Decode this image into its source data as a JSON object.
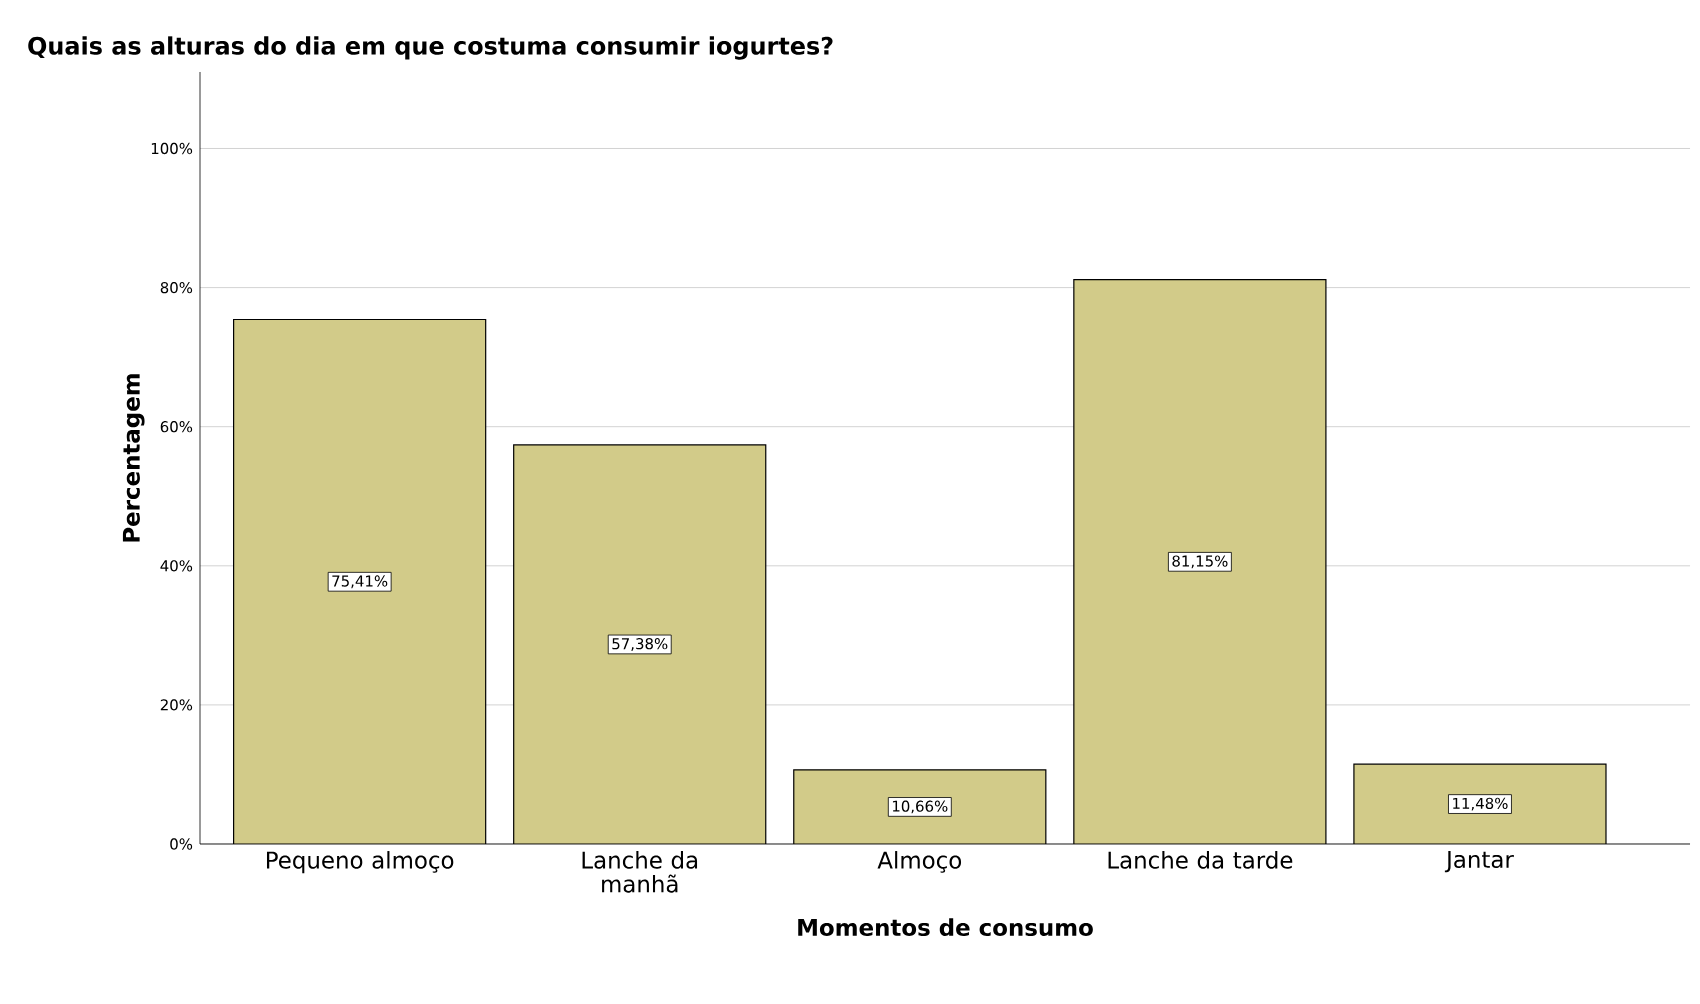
{
  "chart_data": {
    "type": "bar",
    "title": "Quais as alturas do dia em que costuma consumir iogurtes?",
    "xlabel": "Momentos de consumo",
    "ylabel": "Percentagem",
    "categories": [
      "Pequeno almoço",
      "Lanche da manhã",
      "Almoço",
      "Lanche da tarde",
      "Jantar"
    ],
    "values": [
      75.41,
      57.38,
      10.66,
      81.15,
      11.48
    ],
    "value_labels": [
      "75,41%",
      "57,38%",
      "10,66%",
      "81,15%",
      "11,48%"
    ],
    "color": "#d2cb89",
    "ylim": [
      0,
      111
    ],
    "yticks": [
      {
        "value": 0,
        "label": "0%"
      },
      {
        "value": 20,
        "label": "20%"
      },
      {
        "value": 40,
        "label": "40%"
      },
      {
        "value": 60,
        "label": "60%"
      },
      {
        "value": 80,
        "label": "80%"
      },
      {
        "value": 100,
        "label": "100%"
      }
    ],
    "grid": "y"
  }
}
